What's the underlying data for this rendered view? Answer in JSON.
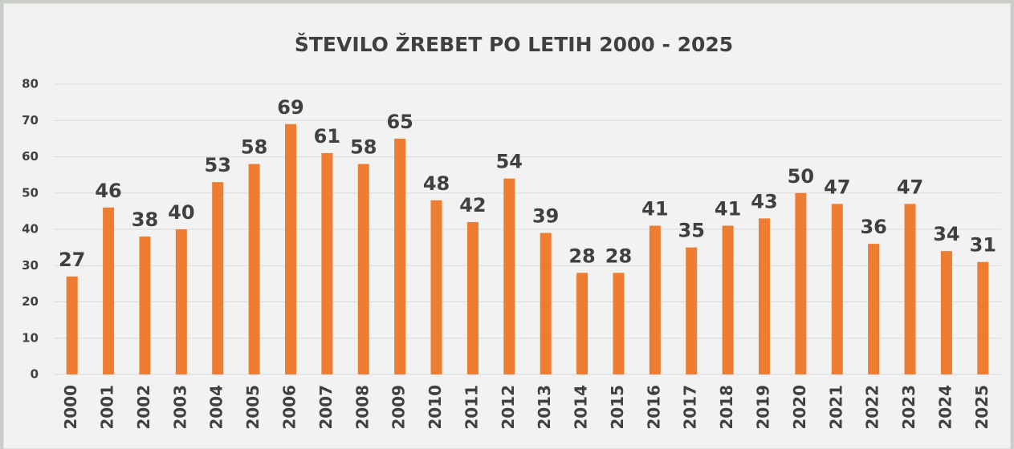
{
  "chart_data": {
    "type": "bar",
    "title": "ŠTEVILO ŽREBET PO LETIH 2000 - 2025",
    "categories": [
      "2000",
      "2001",
      "2002",
      "2003",
      "2004",
      "2005",
      "2006",
      "2007",
      "2008",
      "2009",
      "2010",
      "2011",
      "2012",
      "2013",
      "2014",
      "2015",
      "2016",
      "2017",
      "2018",
      "2019",
      "2020",
      "2021",
      "2022",
      "2023",
      "2024",
      "2025"
    ],
    "values": [
      27,
      46,
      38,
      40,
      53,
      58,
      69,
      61,
      58,
      65,
      48,
      42,
      54,
      39,
      28,
      28,
      41,
      35,
      41,
      43,
      50,
      47,
      36,
      47,
      34,
      31
    ],
    "color": "#ed7d31",
    "ylim": [
      0,
      80
    ],
    "yticks": [
      0,
      10,
      20,
      30,
      40,
      50,
      60,
      70,
      80
    ],
    "grid": true
  }
}
